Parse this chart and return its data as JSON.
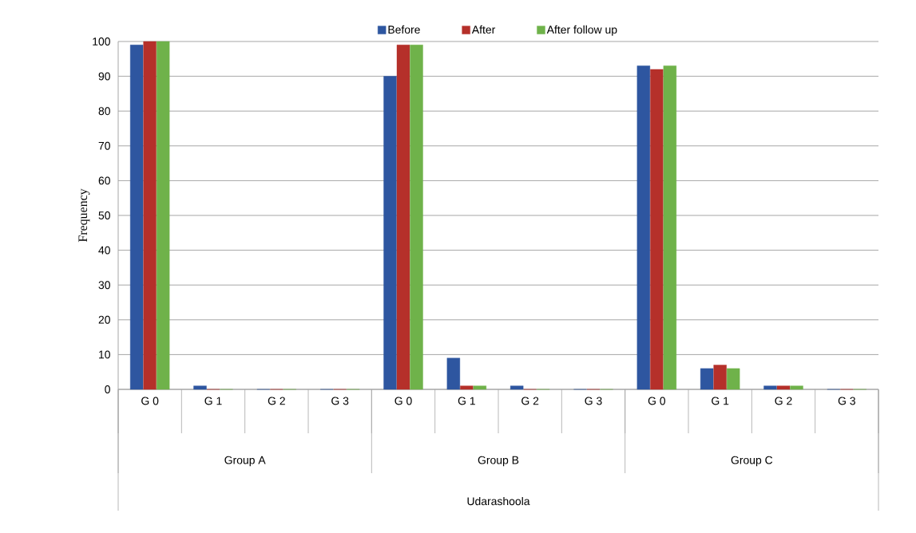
{
  "chart_data": {
    "type": "bar",
    "ylabel": "Frequency",
    "categories": [
      "G 0",
      "G 1",
      "G 2",
      "G 3",
      "G 0",
      "G 1",
      "G 2",
      "G 3",
      "G 0",
      "G 1",
      "G 2",
      "G 3"
    ],
    "annotations": [
      "Group A",
      "Group B",
      "Group C",
      "Udarashoola"
    ],
    "series": [
      {
        "name": "Before",
        "color": "#2e56a0",
        "values": [
          99,
          1,
          0,
          0,
          90,
          9,
          1,
          0,
          93,
          6,
          1,
          0
        ]
      },
      {
        "name": "After",
        "color": "#b5302a",
        "values": [
          100,
          0,
          0,
          0,
          99,
          1,
          0,
          0,
          92,
          7,
          1,
          0
        ]
      },
      {
        "name": "After follow up",
        "color": "#6fb24a",
        "values": [
          100,
          0,
          0,
          0,
          99,
          1,
          0,
          0,
          93,
          6,
          1,
          0
        ]
      }
    ],
    "ylim": [
      0,
      100
    ],
    "yticks": [
      0,
      10,
      20,
      30,
      40,
      50,
      60,
      70,
      80,
      90,
      100
    ],
    "grid": "y",
    "legend": "top"
  }
}
